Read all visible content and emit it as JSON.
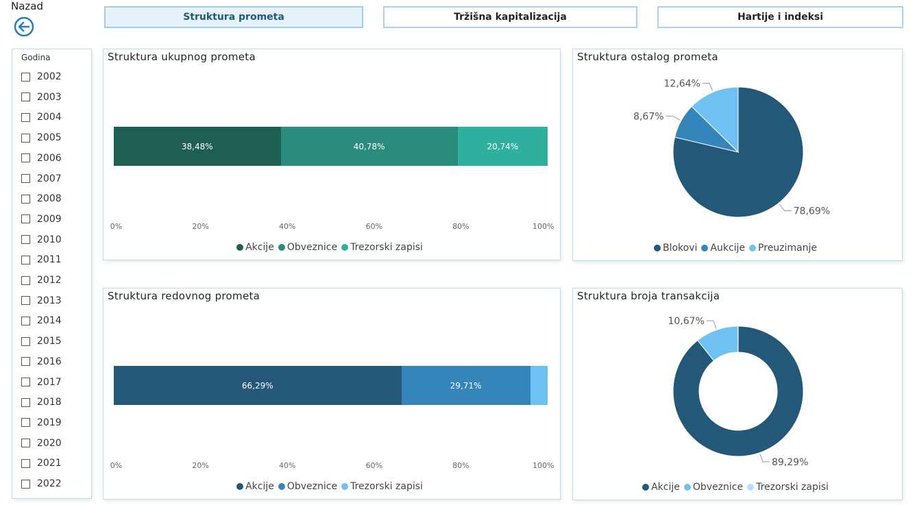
{
  "header": {
    "back_label": "Nazad",
    "tabs": [
      {
        "label": "Struktura prometa",
        "active": true
      },
      {
        "label": "Tržišna kapitalizacija",
        "active": false
      },
      {
        "label": "Hartije i indeksi",
        "active": false
      }
    ]
  },
  "slicer": {
    "title": "Godina",
    "years": [
      "2002",
      "2003",
      "2004",
      "2005",
      "2006",
      "2007",
      "2008",
      "2009",
      "2010",
      "2011",
      "2012",
      "2013",
      "2014",
      "2015",
      "2016",
      "2017",
      "2018",
      "2019",
      "2020",
      "2021",
      "2022"
    ]
  },
  "colors": {
    "akcije_green": "#1f5f53",
    "obveznice_green": "#2a8c7d",
    "trezorski_green": "#2fb09e",
    "dark_blue": "#235878",
    "mid_blue": "#3585ba",
    "light_blue": "#6ec1f2",
    "pale_blue": "#b3e0fa"
  },
  "chart_data": [
    {
      "type": "bar",
      "title": "Struktura ukupnog prometa",
      "orientation": "horizontal-stacked-100",
      "series": [
        {
          "name": "Akcije",
          "value": 38.48,
          "label": "38,48%"
        },
        {
          "name": "Obveznice",
          "value": 40.78,
          "label": "40,78%"
        },
        {
          "name": "Trezorski zapisi",
          "value": 20.74,
          "label": "20,74%"
        }
      ],
      "x_ticks": [
        "0%",
        "20%",
        "40%",
        "60%",
        "80%",
        "100%"
      ],
      "xlim": [
        0,
        100
      ],
      "legend": "bottom-center"
    },
    {
      "type": "pie",
      "title": "Struktura ostalog prometa",
      "slices": [
        {
          "name": "Blokovi",
          "value": 78.69,
          "label": "78,69%"
        },
        {
          "name": "Aukcije",
          "value": 8.67,
          "label": "8,67%"
        },
        {
          "name": "Preuzimanje",
          "value": 12.64,
          "label": "12,64%"
        }
      ],
      "legend": "bottom-center"
    },
    {
      "type": "bar",
      "title": "Struktura redovnog prometa",
      "orientation": "horizontal-stacked-100",
      "series": [
        {
          "name": "Akcije",
          "value": 66.29,
          "label": "66,29%"
        },
        {
          "name": "Obveznice",
          "value": 29.71,
          "label": "29,71%"
        },
        {
          "name": "Trezorski zapisi",
          "value": 4.0,
          "label": ""
        }
      ],
      "x_ticks": [
        "0%",
        "20%",
        "40%",
        "60%",
        "80%",
        "100%"
      ],
      "xlim": [
        0,
        100
      ],
      "legend": "bottom-center"
    },
    {
      "type": "pie",
      "title": "Struktura broja transakcija",
      "donut": true,
      "slices": [
        {
          "name": "Akcije",
          "value": 89.29,
          "label": "89,29%"
        },
        {
          "name": "Obveznice",
          "value": 10.67,
          "label": "10,67%"
        },
        {
          "name": "Trezorski zapisi",
          "value": 0.04,
          "label": ""
        }
      ],
      "legend": "bottom-center"
    }
  ]
}
